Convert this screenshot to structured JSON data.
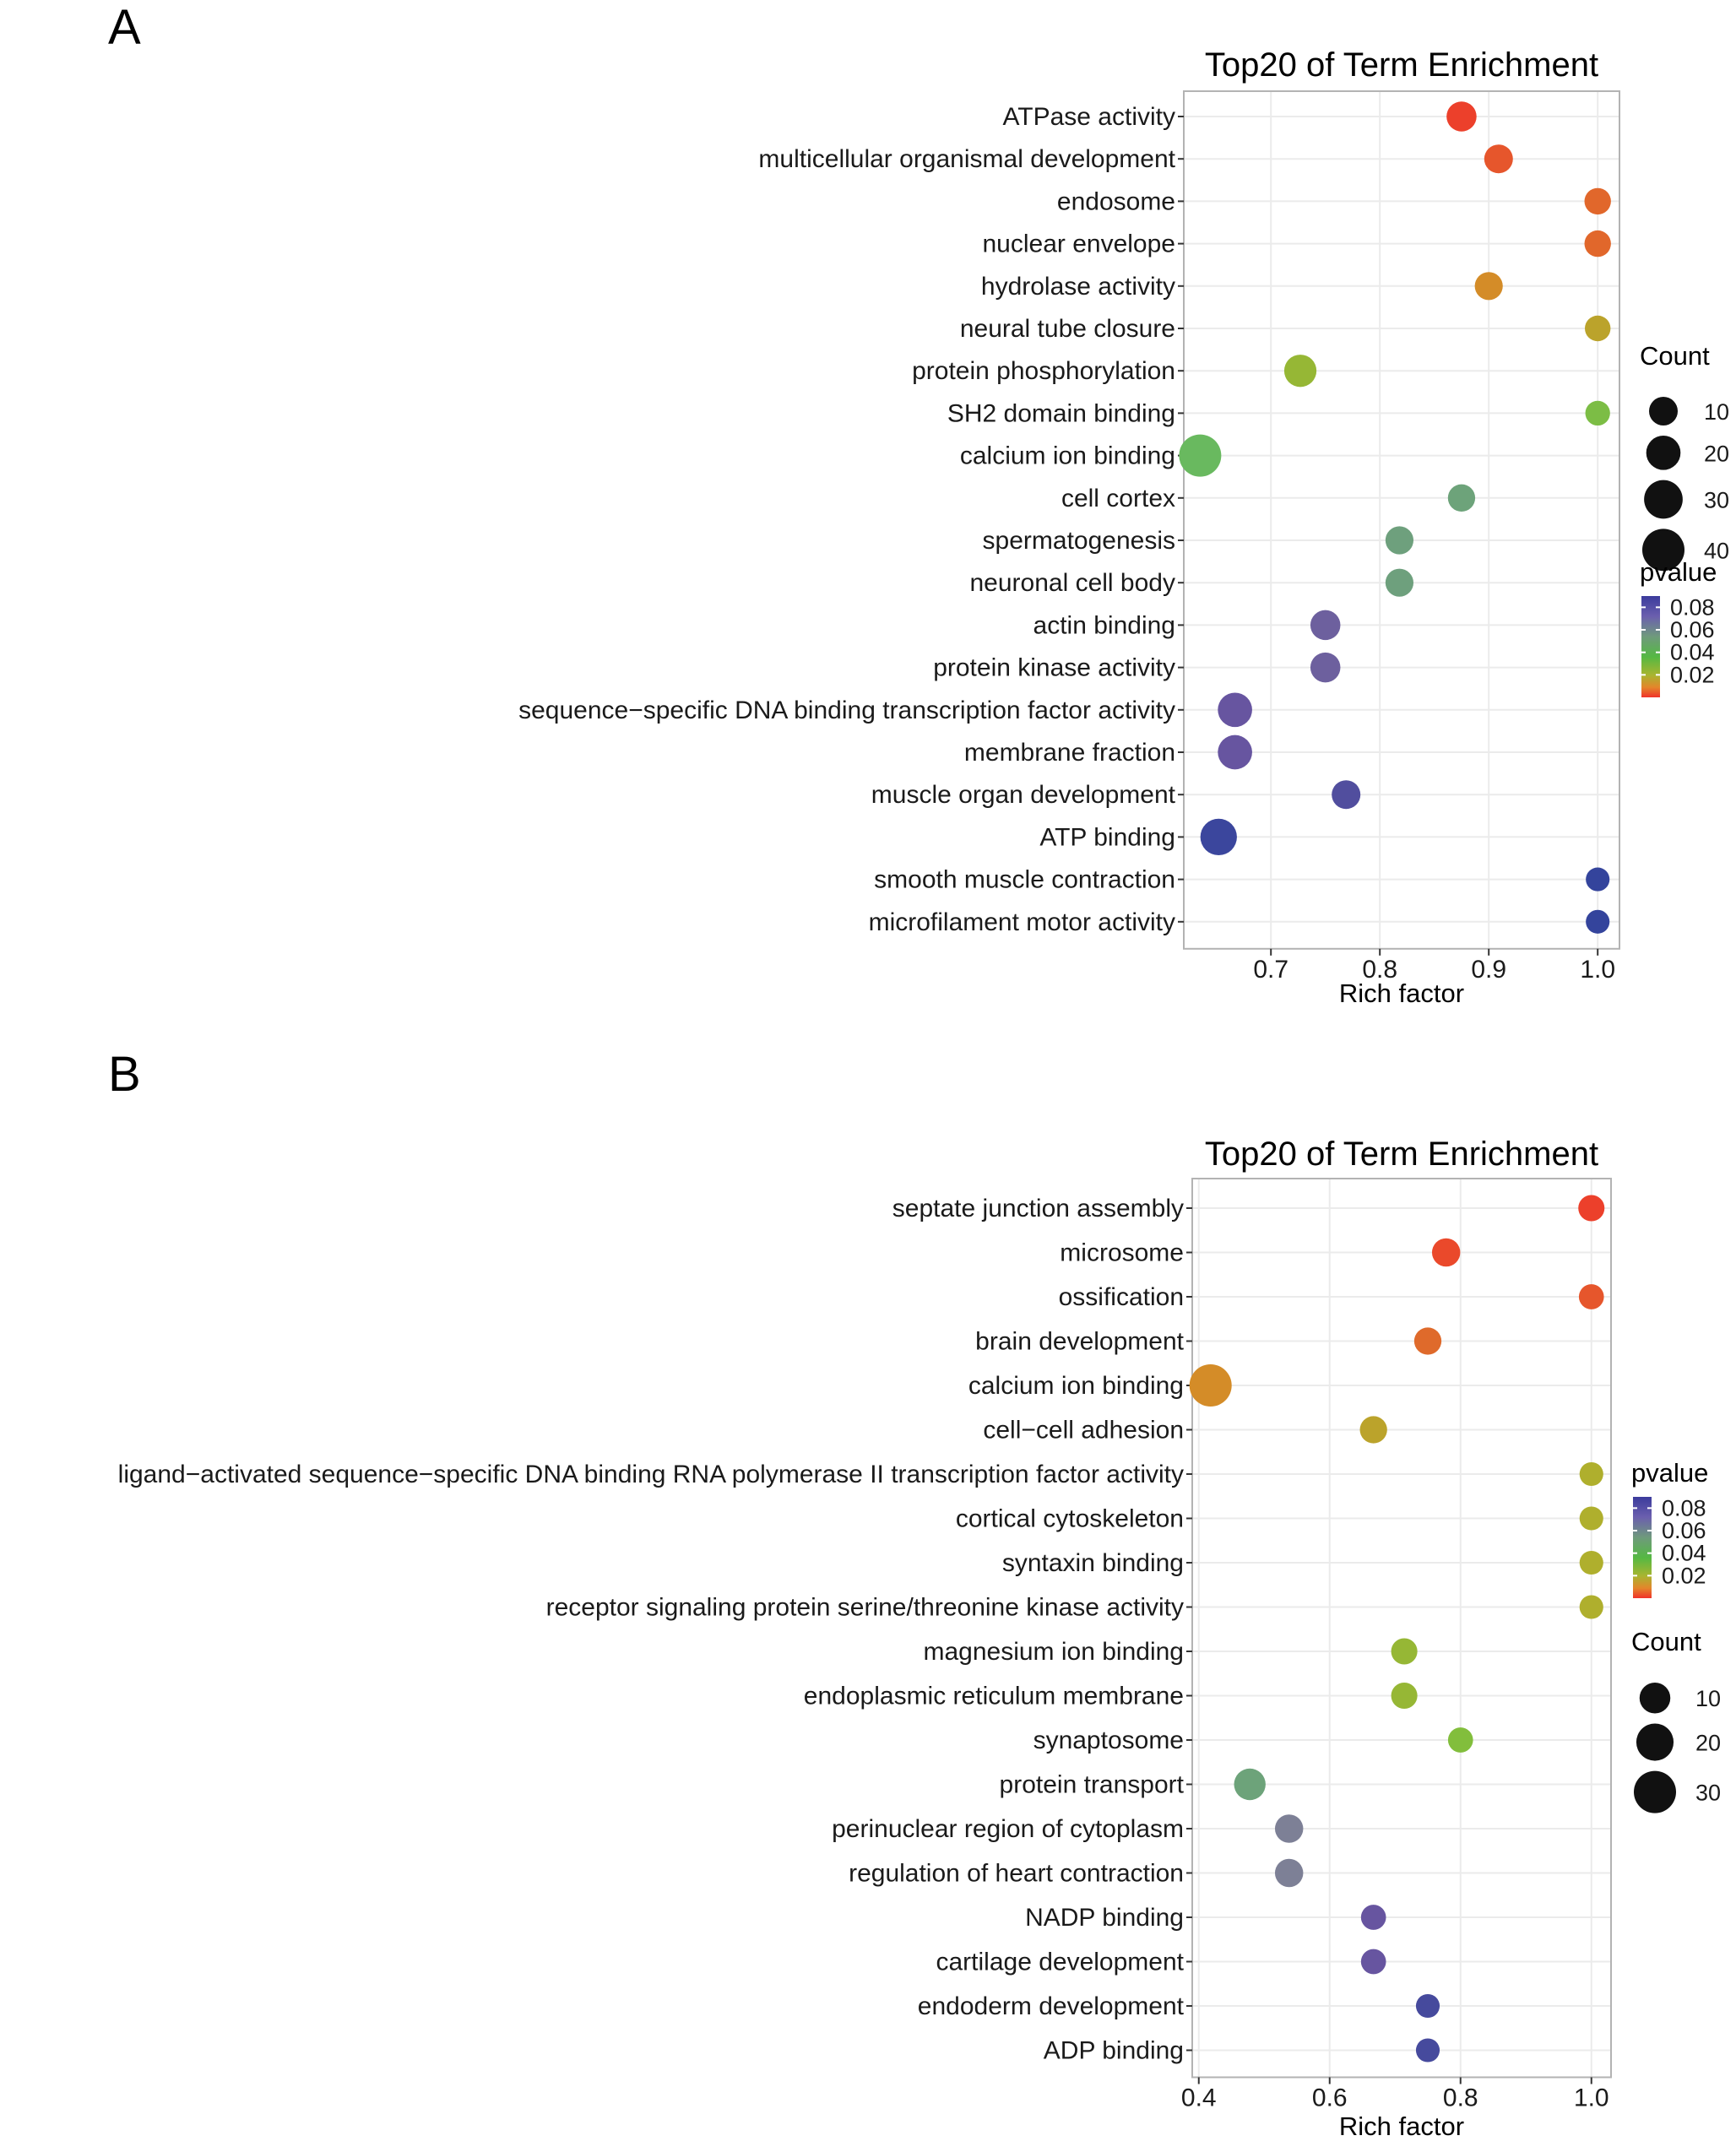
{
  "panel_labels": [
    "A",
    "B"
  ],
  "chart_data": [
    {
      "type": "scatter",
      "panel": "A",
      "title": "Top20 of Term Enrichment",
      "xlabel": "Rich factor",
      "ylabel": "",
      "xlim": [
        0.62,
        1.02
      ],
      "xticks": [
        0.7,
        0.8,
        0.9,
        1.0
      ],
      "xtick_labels": [
        "0.7",
        "0.8",
        "0.9",
        "1.0"
      ],
      "grid": true,
      "legend_placement": "right",
      "count_legend": {
        "title": "Count",
        "values": [
          10,
          20,
          30,
          40
        ]
      },
      "pvalue_legend": {
        "title": "pvalue",
        "ticks": [
          0.08,
          0.06,
          0.04,
          0.02
        ],
        "tick_labels": [
          "0.08",
          "0.06",
          "0.04",
          "0.02"
        ],
        "range": [
          0.0,
          0.09
        ]
      },
      "points": [
        {
          "term": "ATPase activity",
          "rich_factor": 0.875,
          "count": 12,
          "pvalue": 0.003
        },
        {
          "term": "multicellular organismal development",
          "rich_factor": 0.909,
          "count": 10,
          "pvalue": 0.008
        },
        {
          "term": "endosome",
          "rich_factor": 1.0,
          "count": 7,
          "pvalue": 0.012
        },
        {
          "term": "nuclear envelope",
          "rich_factor": 1.0,
          "count": 7,
          "pvalue": 0.012
        },
        {
          "term": "hydrolase activity",
          "rich_factor": 0.9,
          "count": 9,
          "pvalue": 0.022
        },
        {
          "term": "neural tube closure",
          "rich_factor": 1.0,
          "count": 6,
          "pvalue": 0.028
        },
        {
          "term": "protein phosphorylation",
          "rich_factor": 0.727,
          "count": 16,
          "pvalue": 0.036
        },
        {
          "term": "SH2 domain binding",
          "rich_factor": 1.0,
          "count": 5,
          "pvalue": 0.042
        },
        {
          "term": "calcium ion binding",
          "rich_factor": 0.635,
          "count": 40,
          "pvalue": 0.048
        },
        {
          "term": "cell cortex",
          "rich_factor": 0.875,
          "count": 8,
          "pvalue": 0.056
        },
        {
          "term": "spermatogenesis",
          "rich_factor": 0.818,
          "count": 9,
          "pvalue": 0.057
        },
        {
          "term": "neuronal cell body",
          "rich_factor": 0.818,
          "count": 9,
          "pvalue": 0.057
        },
        {
          "term": "actin binding",
          "rich_factor": 0.75,
          "count": 12,
          "pvalue": 0.074
        },
        {
          "term": "protein kinase activity",
          "rich_factor": 0.75,
          "count": 12,
          "pvalue": 0.074
        },
        {
          "term": "sequence−specific DNA binding transcription factor activity",
          "rich_factor": 0.667,
          "count": 20,
          "pvalue": 0.076
        },
        {
          "term": "membrane fraction",
          "rich_factor": 0.667,
          "count": 20,
          "pvalue": 0.076
        },
        {
          "term": "muscle organ development",
          "rich_factor": 0.769,
          "count": 10,
          "pvalue": 0.082
        },
        {
          "term": "ATP binding",
          "rich_factor": 0.652,
          "count": 25,
          "pvalue": 0.088
        },
        {
          "term": "smooth muscle contraction",
          "rich_factor": 1.0,
          "count": 4,
          "pvalue": 0.09
        },
        {
          "term": "microfilament motor activity",
          "rich_factor": 1.0,
          "count": 4,
          "pvalue": 0.09
        }
      ]
    },
    {
      "type": "scatter",
      "panel": "B",
      "title": "Top20 of Term Enrichment",
      "xlabel": "Rich factor",
      "ylabel": "",
      "xlim": [
        0.39,
        1.03
      ],
      "xticks": [
        0.4,
        0.6,
        0.8,
        1.0
      ],
      "xtick_labels": [
        "0.4",
        "0.6",
        "0.8",
        "1.0"
      ],
      "grid": true,
      "legend_placement": "right",
      "pvalue_legend": {
        "title": "pvalue",
        "ticks": [
          0.08,
          0.06,
          0.04,
          0.02
        ],
        "tick_labels": [
          "0.08",
          "0.06",
          "0.04",
          "0.02"
        ],
        "range": [
          0.0,
          0.09
        ]
      },
      "count_legend": {
        "title": "Count",
        "values": [
          10,
          20,
          30
        ]
      },
      "points": [
        {
          "term": "septate junction assembly",
          "rich_factor": 1.0,
          "count": 5,
          "pvalue": 0.003
        },
        {
          "term": "microsome",
          "rich_factor": 0.778,
          "count": 7,
          "pvalue": 0.005
        },
        {
          "term": "ossification",
          "rich_factor": 1.0,
          "count": 4,
          "pvalue": 0.008
        },
        {
          "term": "brain development",
          "rich_factor": 0.75,
          "count": 6,
          "pvalue": 0.013
        },
        {
          "term": "calcium ion binding",
          "rich_factor": 0.418,
          "count": 30,
          "pvalue": 0.022
        },
        {
          "term": "cell−cell adhesion",
          "rich_factor": 0.667,
          "count": 6,
          "pvalue": 0.028
        },
        {
          "term": "ligand−activated sequence−specific DNA binding RNA polymerase II transcription factor activity",
          "rich_factor": 1.0,
          "count": 3,
          "pvalue": 0.031
        },
        {
          "term": "cortical cytoskeleton",
          "rich_factor": 1.0,
          "count": 3,
          "pvalue": 0.031
        },
        {
          "term": "syntaxin binding",
          "rich_factor": 1.0,
          "count": 3,
          "pvalue": 0.031
        },
        {
          "term": "receptor signaling protein serine/threonine kinase activity",
          "rich_factor": 1.0,
          "count": 3,
          "pvalue": 0.031
        },
        {
          "term": "magnesium ion binding",
          "rich_factor": 0.714,
          "count": 5,
          "pvalue": 0.036
        },
        {
          "term": "endoplasmic reticulum membrane",
          "rich_factor": 0.714,
          "count": 5,
          "pvalue": 0.036
        },
        {
          "term": "synaptosome",
          "rich_factor": 0.8,
          "count": 4,
          "pvalue": 0.04
        },
        {
          "term": "protein transport",
          "rich_factor": 0.478,
          "count": 11,
          "pvalue": 0.056
        },
        {
          "term": "perinuclear region of cytoplasm",
          "rich_factor": 0.538,
          "count": 7,
          "pvalue": 0.068
        },
        {
          "term": "regulation of heart contraction",
          "rich_factor": 0.538,
          "count": 7,
          "pvalue": 0.068
        },
        {
          "term": "NADP binding",
          "rich_factor": 0.667,
          "count": 4,
          "pvalue": 0.076
        },
        {
          "term": "cartilage development",
          "rich_factor": 0.667,
          "count": 4,
          "pvalue": 0.076
        },
        {
          "term": "endoderm development",
          "rich_factor": 0.75,
          "count": 3,
          "pvalue": 0.085
        },
        {
          "term": "ADP binding",
          "rich_factor": 0.75,
          "count": 3,
          "pvalue": 0.085
        }
      ]
    }
  ]
}
